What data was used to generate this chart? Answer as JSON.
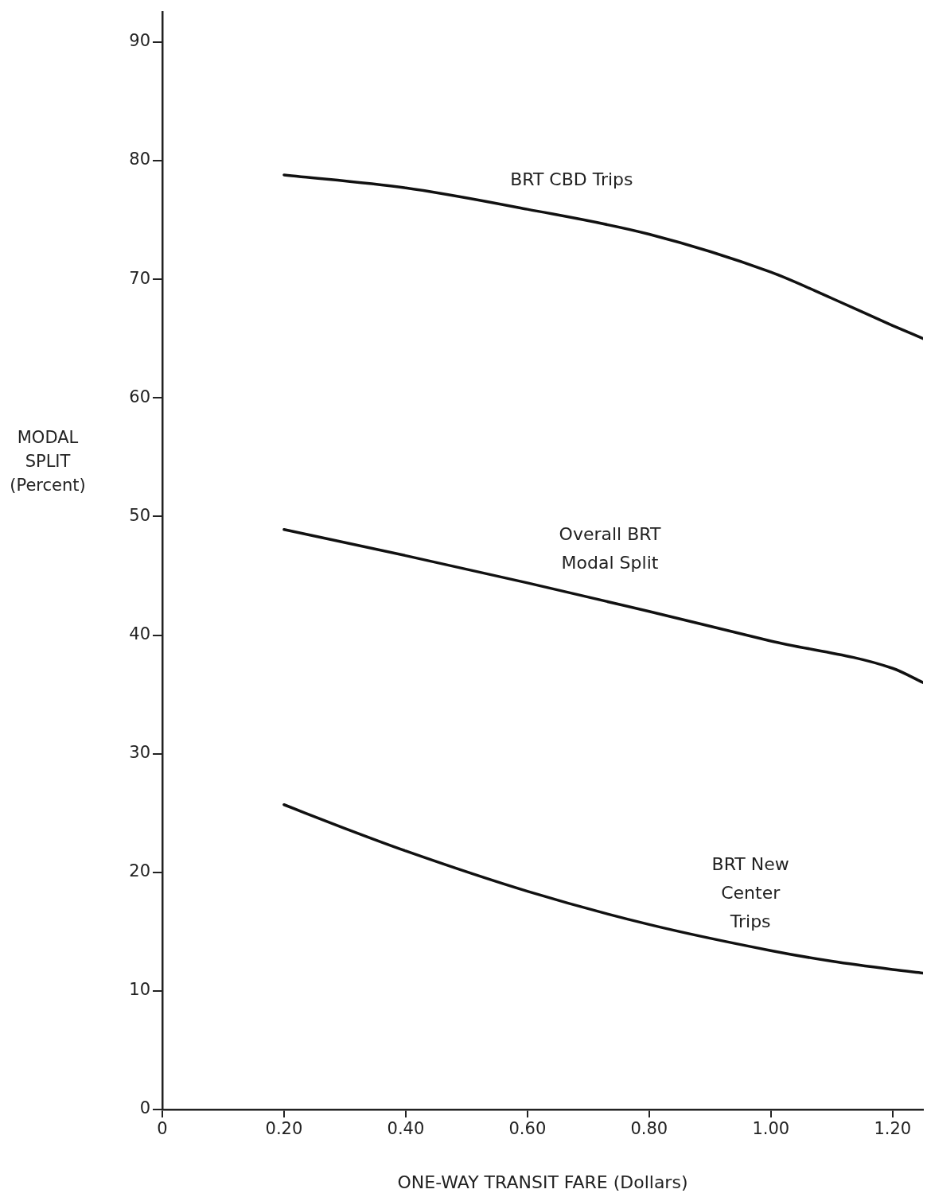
{
  "chart_data": {
    "type": "line",
    "xlabel": "ONE-WAY TRANSIT FARE (Dollars)",
    "ylabel": "MODAL\nSPLIT\n(Percent)",
    "xlim": [
      0,
      1.25
    ],
    "ylim": [
      0,
      92.5
    ],
    "xticks": [
      0,
      {
        "value": 0.2,
        "label": "0.20"
      },
      {
        "value": 0.4,
        "label": "0.40"
      },
      {
        "value": 0.6,
        "label": "0.60"
      },
      {
        "value": 0.8,
        "label": "0.80"
      },
      {
        "value": 1,
        "label": "1.00"
      },
      {
        "value": 1.2,
        "label": "1.20"
      }
    ],
    "yticks": [
      0,
      10,
      20,
      30,
      40,
      50,
      60,
      70,
      80,
      90
    ],
    "grid": false,
    "legend": false,
    "marker": "none",
    "line_style": "solid",
    "series": [
      {
        "name": "BRT CBD Trips",
        "color": "#111111",
        "x": [
          0.2,
          0.4,
          0.6,
          0.8,
          1.0,
          1.1,
          1.2,
          1.25
        ],
        "values": [
          78.8,
          77.7,
          75.9,
          73.8,
          70.6,
          68.4,
          66.1,
          65.0
        ]
      },
      {
        "name": "Overall BRT Modal Split",
        "color": "#111111",
        "x": [
          0.2,
          0.4,
          0.6,
          0.8,
          1.0,
          1.2,
          1.25
        ],
        "values": [
          48.9,
          46.7,
          44.4,
          42.0,
          39.5,
          37.2,
          36.0
        ]
      },
      {
        "name": "BRT New Center Trips",
        "color": "#111111",
        "x": [
          0.2,
          0.3,
          0.4,
          0.6,
          0.8,
          1.0,
          1.1,
          1.2,
          1.25
        ],
        "values": [
          25.7,
          23.7,
          21.8,
          18.4,
          15.6,
          13.4,
          12.5,
          11.8,
          11.5
        ]
      }
    ]
  }
}
